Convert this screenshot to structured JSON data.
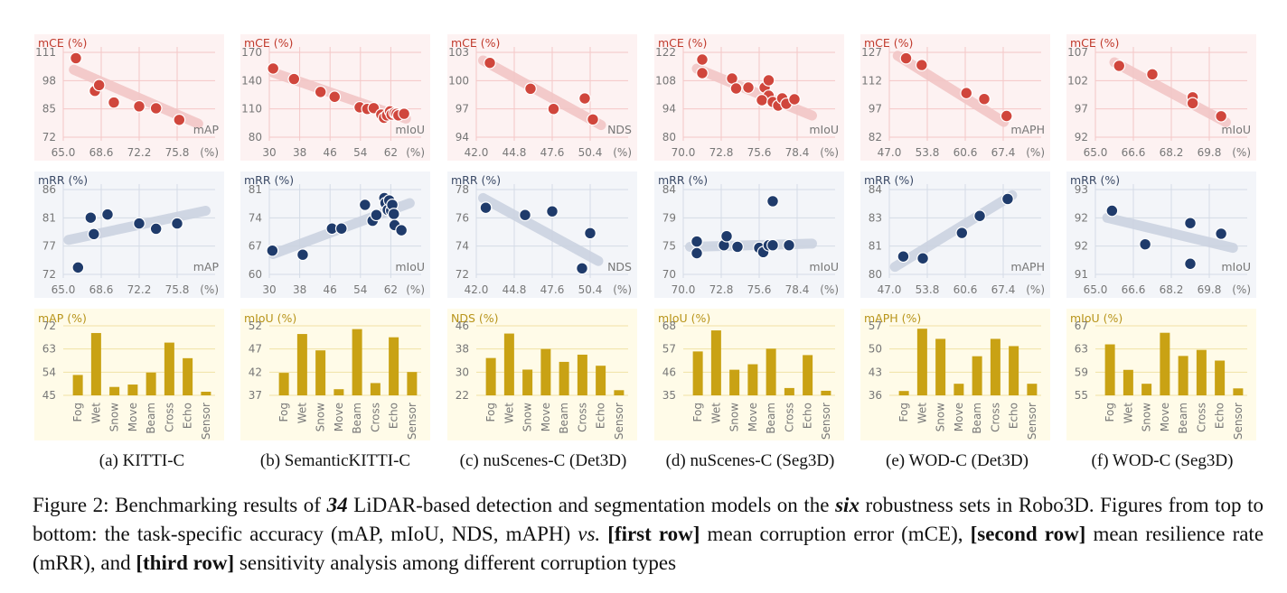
{
  "caption": {
    "label": "Figure 2:",
    "t1": " Benchmarking results of ",
    "num_models": "34",
    "t2": " LiDAR-based detection and segmentation models on the ",
    "num_sets": "six",
    "t3": " robustness sets in Robo3D. Figures from top to bottom: the task-specific accuracy (mAP, mIoU, NDS, mAPH) ",
    "vs": "vs.",
    "t4": " ",
    "row1": "[first row]",
    "t5": " mean corruption error (mCE), ",
    "row2": "[second row]",
    "t6": " mean resilience rate (mRR), and ",
    "row3": "[third row]",
    "t7": " sensitivity analysis among different corruption types"
  },
  "colors": {
    "mce_bg": "#fdf2f2",
    "mce_grid": "#f4c7c7",
    "mce_label": "#c0392b",
    "mce_point": "#d0463c",
    "mce_trend": "#f2c6c6",
    "mrr_bg": "#f3f5f9",
    "mrr_grid": "#d4dbe6",
    "mrr_label": "#3b4a66",
    "mrr_point": "#1f3b6b",
    "mrr_trend": "#ccd3e1",
    "bar_bg": "#fffbe8",
    "bar_grid": "#f1e2a5",
    "bar_label": "#b8941a",
    "bar_fill": "#c9a214",
    "tick": "#777777"
  },
  "subcaptions": [
    "(a)  KITTI-C",
    "(b)  SemanticKITTI-C",
    "(c)  nuScenes-C (Det3D)",
    "(d)  nuScenes-C (Seg3D)",
    "(e)  WOD-C (Det3D)",
    "(f)  WOD-C (Seg3D)"
  ],
  "chart_data": [
    {
      "dataset": "KITTI-C",
      "metric": "mAP",
      "x_ticks": [
        "65.0",
        "68.6",
        "72.2",
        "75.8"
      ],
      "xlim": [
        65.0,
        79.4
      ],
      "mce": {
        "type": "scatter",
        "ylabel": "mCE (%)",
        "xlabel": "mAP",
        "unit": "(%)",
        "y_ticks": [
          "72",
          "85",
          "98",
          "111"
        ],
        "ylim": [
          72,
          116
        ],
        "trend": [
          [
            66.0,
            107
          ],
          [
            77.8,
            79
          ]
        ],
        "points": [
          [
            66.2,
            113
          ],
          [
            68.0,
            96
          ],
          [
            68.4,
            99
          ],
          [
            69.8,
            90
          ],
          [
            72.2,
            88
          ],
          [
            73.8,
            87
          ],
          [
            76.0,
            81
          ]
        ]
      },
      "mrr": {
        "type": "scatter",
        "ylabel": "mRR (%)",
        "xlabel": "mAP",
        "unit": "(%)",
        "y_ticks": [
          "72",
          "77",
          "81",
          "86"
        ],
        "ylim": [
          72,
          88
        ],
        "trend": [
          [
            65.5,
            78.5
          ],
          [
            78.5,
            84
          ]
        ],
        "points": [
          [
            66.4,
            73.3
          ],
          [
            67.6,
            82.7
          ],
          [
            67.9,
            79.6
          ],
          [
            69.2,
            83.3
          ],
          [
            72.2,
            81.6
          ],
          [
            73.8,
            80.6
          ],
          [
            75.8,
            81.6
          ]
        ]
      },
      "bar": {
        "type": "bar",
        "ylabel": "mAP (%)",
        "y_ticks": [
          "45",
          "54",
          "63",
          "72"
        ],
        "ylim": [
          45,
          74
        ],
        "categories": [
          "Fog",
          "Wet",
          "Snow",
          "Move",
          "Beam",
          "Cross",
          "Echo",
          "Sensor"
        ],
        "values": [
          53.5,
          71.0,
          48.5,
          49.5,
          54.5,
          67.0,
          60.5,
          46.5
        ]
      }
    },
    {
      "dataset": "SemanticKITTI-C",
      "metric": "mIoU",
      "x_ticks": [
        "30",
        "38",
        "46",
        "54",
        "62"
      ],
      "xlim": [
        30,
        70
      ],
      "mce": {
        "type": "scatter",
        "ylabel": "mCE (%)",
        "xlabel": "mIoU",
        "unit": "(%)",
        "y_ticks": [
          "80",
          "110",
          "140",
          "170"
        ],
        "ylim": [
          80,
          185
        ],
        "trend": [
          [
            31,
            160
          ],
          [
            66,
            103
          ]
        ],
        "points": [
          [
            31.0,
            165
          ],
          [
            36.5,
            152
          ],
          [
            43.5,
            136
          ],
          [
            47.2,
            130
          ],
          [
            53.8,
            117
          ],
          [
            55.8,
            115
          ],
          [
            57.5,
            116
          ],
          [
            59.5,
            108
          ],
          [
            60.2,
            104
          ],
          [
            61.0,
            107
          ],
          [
            61.8,
            112
          ],
          [
            62.2,
            108
          ],
          [
            63.0,
            110
          ],
          [
            63.5,
            109
          ],
          [
            64.0,
            107
          ],
          [
            65.5,
            109
          ]
        ]
      },
      "mrr": {
        "type": "scatter",
        "ylabel": "mRR (%)",
        "xlabel": "mIoU",
        "unit": "(%)",
        "y_ticks": [
          "60",
          "67",
          "74",
          "81"
        ],
        "ylim": [
          60,
          85
        ],
        "trend": [
          [
            31,
            66
          ],
          [
            67,
            81
          ]
        ],
        "points": [
          [
            30.8,
            67.0
          ],
          [
            38.8,
            65.8
          ],
          [
            46.5,
            73.5
          ],
          [
            49.0,
            73.5
          ],
          [
            55.2,
            80.5
          ],
          [
            57.2,
            75.8
          ],
          [
            58.2,
            77.5
          ],
          [
            60.3,
            82.5
          ],
          [
            60.6,
            81.0
          ],
          [
            61.2,
            79.0
          ],
          [
            61.6,
            81.8
          ],
          [
            62.1,
            78.8
          ],
          [
            62.4,
            80.5
          ],
          [
            62.8,
            77.8
          ],
          [
            63.0,
            74.5
          ],
          [
            64.8,
            73.0
          ]
        ]
      },
      "bar": {
        "type": "bar",
        "ylabel": "mIoU (%)",
        "y_ticks": [
          "37",
          "42",
          "47",
          "52"
        ],
        "ylim": [
          37,
          54
        ],
        "categories": [
          "Fog",
          "Wet",
          "Snow",
          "Move",
          "Beam",
          "Cross",
          "Echo",
          "Sensor"
        ],
        "values": [
          42.5,
          52.0,
          48.0,
          38.5,
          53.2,
          40.0,
          51.2,
          42.7
        ]
      }
    },
    {
      "dataset": "nuScenes-C (Det3D)",
      "metric": "NDS",
      "x_ticks": [
        "42.0",
        "44.8",
        "47.6",
        "50.4"
      ],
      "xlim": [
        42.0,
        53.2
      ],
      "mce": {
        "type": "scatter",
        "ylabel": "mCE (%)",
        "xlabel": "NDS",
        "unit": "(%)",
        "y_ticks": [
          "94",
          "97",
          "100",
          "103"
        ],
        "ylim": [
          94,
          104.5
        ],
        "trend": [
          [
            42.5,
            103.5
          ],
          [
            51.2,
            95.5
          ]
        ],
        "points": [
          [
            43.0,
            103.2
          ],
          [
            46.0,
            100.0
          ],
          [
            47.7,
            97.5
          ],
          [
            50.0,
            98.8
          ],
          [
            50.6,
            96.2
          ]
        ]
      },
      "mrr": {
        "type": "scatter",
        "ylabel": "mRR (%)",
        "xlabel": "NDS",
        "unit": "(%)",
        "y_ticks": [
          "72",
          "74",
          "76",
          "78"
        ],
        "ylim": [
          72,
          79
        ],
        "trend": [
          [
            42.5,
            78.3
          ],
          [
            51.0,
            73.1
          ]
        ],
        "points": [
          [
            42.7,
            77.5
          ],
          [
            45.6,
            76.9
          ],
          [
            47.6,
            77.2
          ],
          [
            50.4,
            75.4
          ],
          [
            49.8,
            72.5
          ]
        ]
      },
      "bar": {
        "type": "bar",
        "ylabel": "NDS (%)",
        "y_ticks": [
          "22",
          "30",
          "38",
          "46"
        ],
        "ylim": [
          22,
          49
        ],
        "categories": [
          "Fog",
          "Wet",
          "Snow",
          "Move",
          "Beam",
          "Cross",
          "Echo",
          "Sensor"
        ],
        "values": [
          36.5,
          46.0,
          32.0,
          40.0,
          35.0,
          37.8,
          33.5,
          24.0
        ]
      }
    },
    {
      "dataset": "nuScenes-C (Seg3D)",
      "metric": "mIoU",
      "x_ticks": [
        "70.0",
        "72.8",
        "75.6",
        "78.4"
      ],
      "xlim": [
        70.0,
        81.2
      ],
      "mce": {
        "type": "scatter",
        "ylabel": "mCE (%)",
        "xlabel": "mIoU",
        "unit": "(%)",
        "y_ticks": [
          "80",
          "94",
          "108",
          "122"
        ],
        "ylim": [
          80,
          127
        ],
        "trend": [
          [
            71.0,
            118
          ],
          [
            79.5,
            92
          ]
        ],
        "points": [
          [
            71.4,
            123
          ],
          [
            71.4,
            115.5
          ],
          [
            73.6,
            112.5
          ],
          [
            73.9,
            107
          ],
          [
            74.8,
            107.5
          ],
          [
            76.0,
            107.5
          ],
          [
            76.3,
            111.5
          ],
          [
            76.3,
            103
          ],
          [
            75.8,
            100.5
          ],
          [
            76.6,
            99.5
          ],
          [
            77.0,
            97.5
          ],
          [
            77.3,
            101.5
          ],
          [
            77.6,
            98.5
          ],
          [
            78.2,
            101
          ]
        ]
      },
      "mrr": {
        "type": "scatter",
        "ylabel": "mRR (%)",
        "xlabel": "mIoU",
        "unit": "(%)",
        "y_ticks": [
          "70",
          "75",
          "79",
          "84"
        ],
        "ylim": [
          70,
          86
        ],
        "trend": [
          [
            70.5,
            75.2
          ],
          [
            79.5,
            75.8
          ]
        ],
        "points": [
          [
            71.0,
            76.2
          ],
          [
            71.0,
            74.0
          ],
          [
            73.0,
            75.5
          ],
          [
            73.2,
            77.2
          ],
          [
            74.0,
            75.2
          ],
          [
            75.6,
            75.0
          ],
          [
            75.9,
            74.2
          ],
          [
            76.3,
            75.5
          ],
          [
            76.6,
            75.5
          ],
          [
            76.6,
            83.8
          ],
          [
            77.8,
            75.5
          ]
        ]
      },
      "bar": {
        "type": "bar",
        "ylabel": "mIoU (%)",
        "y_ticks": [
          "35",
          "46",
          "57",
          "68"
        ],
        "ylim": [
          35,
          73
        ],
        "categories": [
          "Fog",
          "Wet",
          "Snow",
          "Move",
          "Beam",
          "Cross",
          "Echo",
          "Sensor"
        ],
        "values": [
          59.0,
          70.5,
          49.0,
          52.0,
          60.5,
          39.0,
          57.0,
          37.5
        ]
      }
    },
    {
      "dataset": "WOD-C (Det3D)",
      "metric": "mAPH",
      "x_ticks": [
        "47.0",
        "53.8",
        "60.6",
        "67.4"
      ],
      "xlim": [
        47.0,
        74.2
      ],
      "mce": {
        "type": "scatter",
        "ylabel": "mCE (%)",
        "xlabel": "mAPH",
        "unit": "(%)",
        "y_ticks": [
          "82",
          "97",
          "112",
          "127"
        ],
        "ylim": [
          82,
          132
        ],
        "trend": [
          [
            48.5,
            130
          ],
          [
            67.5,
            91
          ]
        ],
        "points": [
          [
            50.0,
            128.5
          ],
          [
            52.8,
            124.5
          ],
          [
            60.8,
            108.0
          ],
          [
            64.0,
            104.5
          ],
          [
            68.0,
            94.5
          ]
        ]
      },
      "mrr": {
        "type": "scatter",
        "ylabel": "mRR (%)",
        "xlabel": "mAPH",
        "unit": "(%)",
        "y_ticks": [
          "80",
          "81",
          "83",
          "84"
        ],
        "ylim": [
          80,
          84.5
        ],
        "trend": [
          [
            48.0,
            80.4
          ],
          [
            69.0,
            84.2
          ]
        ],
        "points": [
          [
            49.5,
            80.95
          ],
          [
            53.0,
            80.85
          ],
          [
            60.0,
            82.2
          ],
          [
            63.2,
            83.1
          ],
          [
            68.2,
            84.0
          ]
        ]
      },
      "bar": {
        "type": "bar",
        "ylabel": "mAPH (%)",
        "y_ticks": [
          "36",
          "43",
          "50",
          "57"
        ],
        "ylim": [
          36,
          60
        ],
        "categories": [
          "Fog",
          "Wet",
          "Snow",
          "Move",
          "Beam",
          "Cross",
          "Echo",
          "Sensor"
        ],
        "values": [
          37.5,
          59.0,
          55.5,
          40.0,
          49.5,
          55.5,
          53.0,
          40.0
        ]
      }
    },
    {
      "dataset": "WOD-C (Seg3D)",
      "metric": "mIoU",
      "x_ticks": [
        "65.0",
        "66.6",
        "68.2",
        "69.8"
      ],
      "xlim": [
        65.0,
        71.4
      ],
      "mce": {
        "type": "scatter",
        "ylabel": "mCE (%)",
        "xlabel": "mIoU",
        "unit": "(%)",
        "y_ticks": [
          "92",
          "97",
          "102",
          "107"
        ],
        "ylim": [
          92,
          109
        ],
        "trend": [
          [
            65.8,
            107
          ],
          [
            70.5,
            95
          ]
        ],
        "points": [
          [
            66.0,
            106.3
          ],
          [
            67.4,
            104.6
          ],
          [
            69.1,
            100.0
          ],
          [
            69.1,
            98.8
          ],
          [
            70.3,
            96.2
          ]
        ]
      },
      "mrr": {
        "type": "scatter",
        "ylabel": "mRR (%)",
        "xlabel": "mIoU",
        "unit": "(%)",
        "y_ticks": [
          "91",
          "92",
          "92",
          "93"
        ],
        "ylim": [
          91,
          93.4
        ],
        "trend": [
          [
            65.5,
            92.6
          ],
          [
            70.8,
            91.75
          ]
        ],
        "points": [
          [
            65.7,
            92.8
          ],
          [
            67.1,
            91.85
          ],
          [
            69.0,
            92.45
          ],
          [
            69.0,
            91.3
          ],
          [
            70.3,
            92.15
          ]
        ]
      },
      "bar": {
        "type": "bar",
        "ylabel": "mIoU (%)",
        "y_ticks": [
          "55",
          "59",
          "63",
          "67"
        ],
        "ylim": [
          55,
          70
        ],
        "categories": [
          "Fog",
          "Wet",
          "Snow",
          "Move",
          "Beam",
          "Cross",
          "Echo",
          "Sensor"
        ],
        "values": [
          66.0,
          60.5,
          57.5,
          68.5,
          63.5,
          64.8,
          62.5,
          56.5
        ]
      }
    }
  ]
}
